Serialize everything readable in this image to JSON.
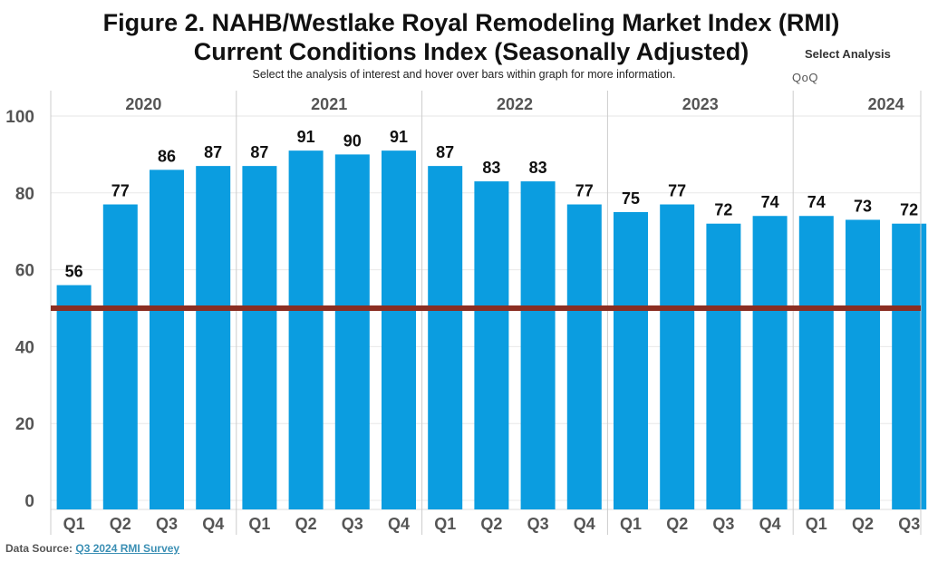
{
  "header": {
    "title_line1": "Figure 2. NAHB/Westlake Royal Remodeling Market Index (RMI)",
    "title_line2": "Current Conditions Index (Seasonally Adjusted)",
    "subtitle": "Select the analysis of interest and hover over bars within graph for more information."
  },
  "analysis": {
    "label": "Select Analysis",
    "value": "QoQ"
  },
  "footer": {
    "prefix": "Data Source: ",
    "link_text": "Q3 2024 RMI Survey"
  },
  "colors": {
    "bar": "#0b9de0",
    "reference_line": "#8b2e22",
    "gridline": "#e8e8e8",
    "divider": "#cccccc"
  },
  "chart_data": {
    "type": "bar",
    "title": "Figure 2. NAHB/Westlake Royal Remodeling Market Index (RMI) Current Conditions Index (Seasonally Adjusted)",
    "ylim": [
      0,
      100
    ],
    "yticks": [
      0,
      20,
      40,
      60,
      80,
      100
    ],
    "reference_line": 50,
    "grid": true,
    "groups": [
      {
        "year": "2020",
        "quarters": [
          "Q1",
          "Q2",
          "Q3",
          "Q4"
        ],
        "values": [
          56,
          77,
          86,
          87
        ]
      },
      {
        "year": "2021",
        "quarters": [
          "Q1",
          "Q2",
          "Q3",
          "Q4"
        ],
        "values": [
          87,
          91,
          90,
          91
        ]
      },
      {
        "year": "2022",
        "quarters": [
          "Q1",
          "Q2",
          "Q3",
          "Q4"
        ],
        "values": [
          87,
          83,
          83,
          77
        ]
      },
      {
        "year": "2023",
        "quarters": [
          "Q1",
          "Q2",
          "Q3",
          "Q4"
        ],
        "values": [
          75,
          77,
          72,
          74
        ]
      },
      {
        "year": "2024",
        "quarters": [
          "Q1",
          "Q2",
          "Q3"
        ],
        "values": [
          74,
          73,
          72
        ]
      }
    ]
  }
}
